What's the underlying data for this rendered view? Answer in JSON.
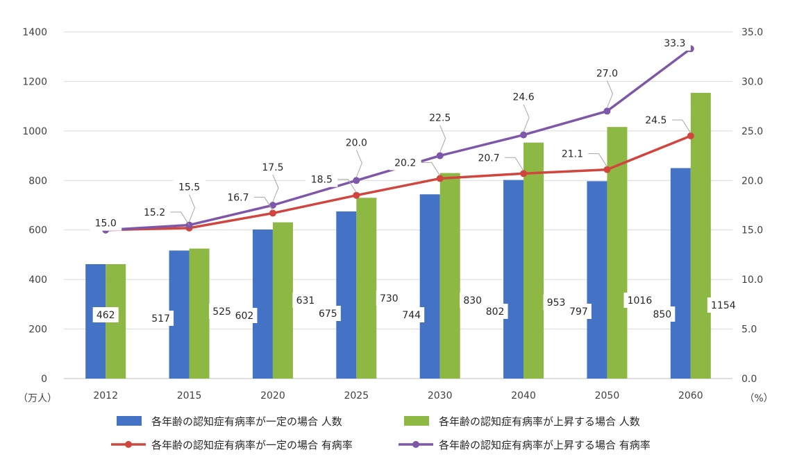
{
  "chart_data": {
    "type": "bar",
    "categories": [
      "2012",
      "2015",
      "2020",
      "2025",
      "2030",
      "2040",
      "2050",
      "2060"
    ],
    "series": [
      {
        "name": "各年齢の認知症有病率が一定の場合 人数",
        "kind": "bar",
        "axis": "left",
        "color": "#4472C4",
        "values": [
          462,
          517,
          602,
          675,
          744,
          802,
          797,
          850
        ]
      },
      {
        "name": "各年齢の認知症有病率が上昇する場合 人数",
        "kind": "bar",
        "axis": "left",
        "color": "#8DB843",
        "values": [
          462,
          525,
          631,
          730,
          830,
          953,
          1016,
          1154
        ]
      },
      {
        "name": "各年齢の認知症有病率が一定の場合 有病率",
        "kind": "line",
        "axis": "right",
        "color": "#D0463E",
        "values": [
          15.0,
          15.2,
          16.7,
          18.5,
          20.2,
          20.7,
          21.1,
          24.5
        ]
      },
      {
        "name": "各年齢の認知症有病率が上昇する場合 有病率",
        "kind": "line",
        "axis": "right",
        "color": "#7E57A8",
        "values": [
          15.0,
          15.5,
          17.5,
          20.0,
          22.5,
          24.6,
          27.0,
          33.3
        ]
      }
    ],
    "bar_labels": [
      [
        "462",
        "517",
        "602",
        "675",
        "744",
        "802",
        "797",
        "850"
      ],
      [
        "",
        "525",
        "631",
        "730",
        "830",
        "953",
        "1016",
        "1154"
      ]
    ],
    "line_labels": [
      [
        "",
        "15.2",
        "16.7",
        "18.5",
        "20.2",
        "20.7",
        "21.1",
        "24.5"
      ],
      [
        "15.0",
        "15.5",
        "17.5",
        "20.0",
        "22.5",
        "24.6",
        "27.0",
        "33.3"
      ]
    ],
    "ylim_left": [
      0,
      1400
    ],
    "yticks_left": [
      "0",
      "200",
      "400",
      "600",
      "800",
      "1000",
      "1200",
      "1400"
    ],
    "ylim_right": [
      0,
      35
    ],
    "yticks_right": [
      "0.0",
      "5.0",
      "10.0",
      "15.0",
      "20.0",
      "25.0",
      "30.0",
      "35.0"
    ],
    "ylabel_left": "（万人）",
    "ylabel_right": "（%）",
    "grid": true,
    "legend_position": "bottom"
  }
}
